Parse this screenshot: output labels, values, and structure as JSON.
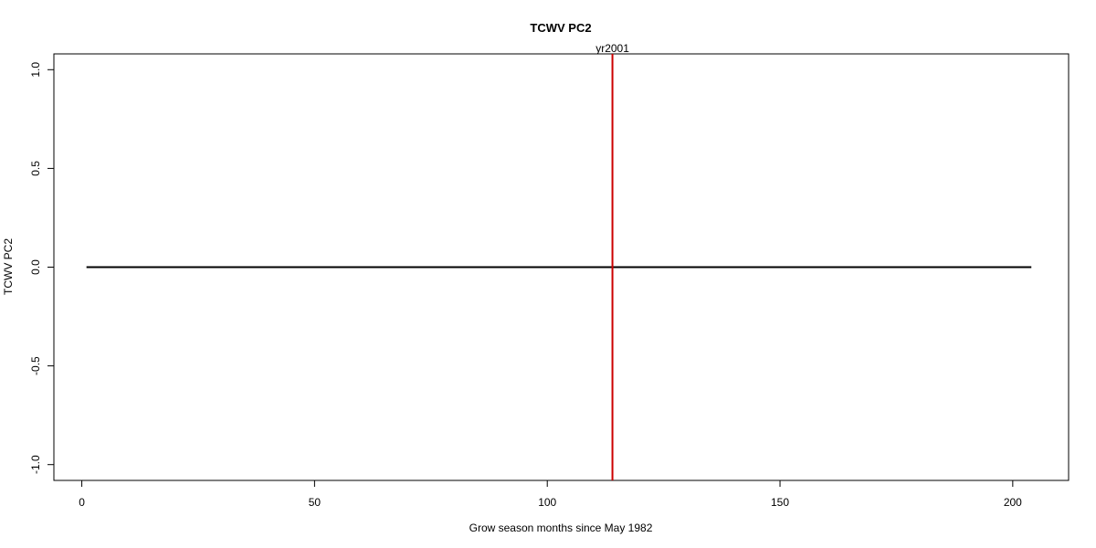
{
  "chart_data": {
    "type": "line",
    "title": "TCWV PC2",
    "xlabel": "Grow season months since May 1982",
    "ylabel": "TCWV PC2",
    "xlim": [
      -6,
      212
    ],
    "ylim": [
      -1.08,
      1.08
    ],
    "xticks": [
      0,
      50,
      100,
      150,
      200
    ],
    "yticks": [
      -1.0,
      -0.5,
      0.0,
      0.5,
      1.0
    ],
    "xtick_labels": [
      "0",
      "50",
      "100",
      "150",
      "200"
    ],
    "ytick_labels": [
      "-1.0",
      "-0.5",
      "0.0",
      "0.5",
      "1.0"
    ],
    "series": [
      {
        "x": [
          1,
          204
        ],
        "values": [
          0,
          0
        ],
        "color": "#000000"
      }
    ],
    "vline": {
      "x": 114,
      "label": "yr2001",
      "color": "#cc0000"
    },
    "grid": false,
    "legend": "none"
  }
}
